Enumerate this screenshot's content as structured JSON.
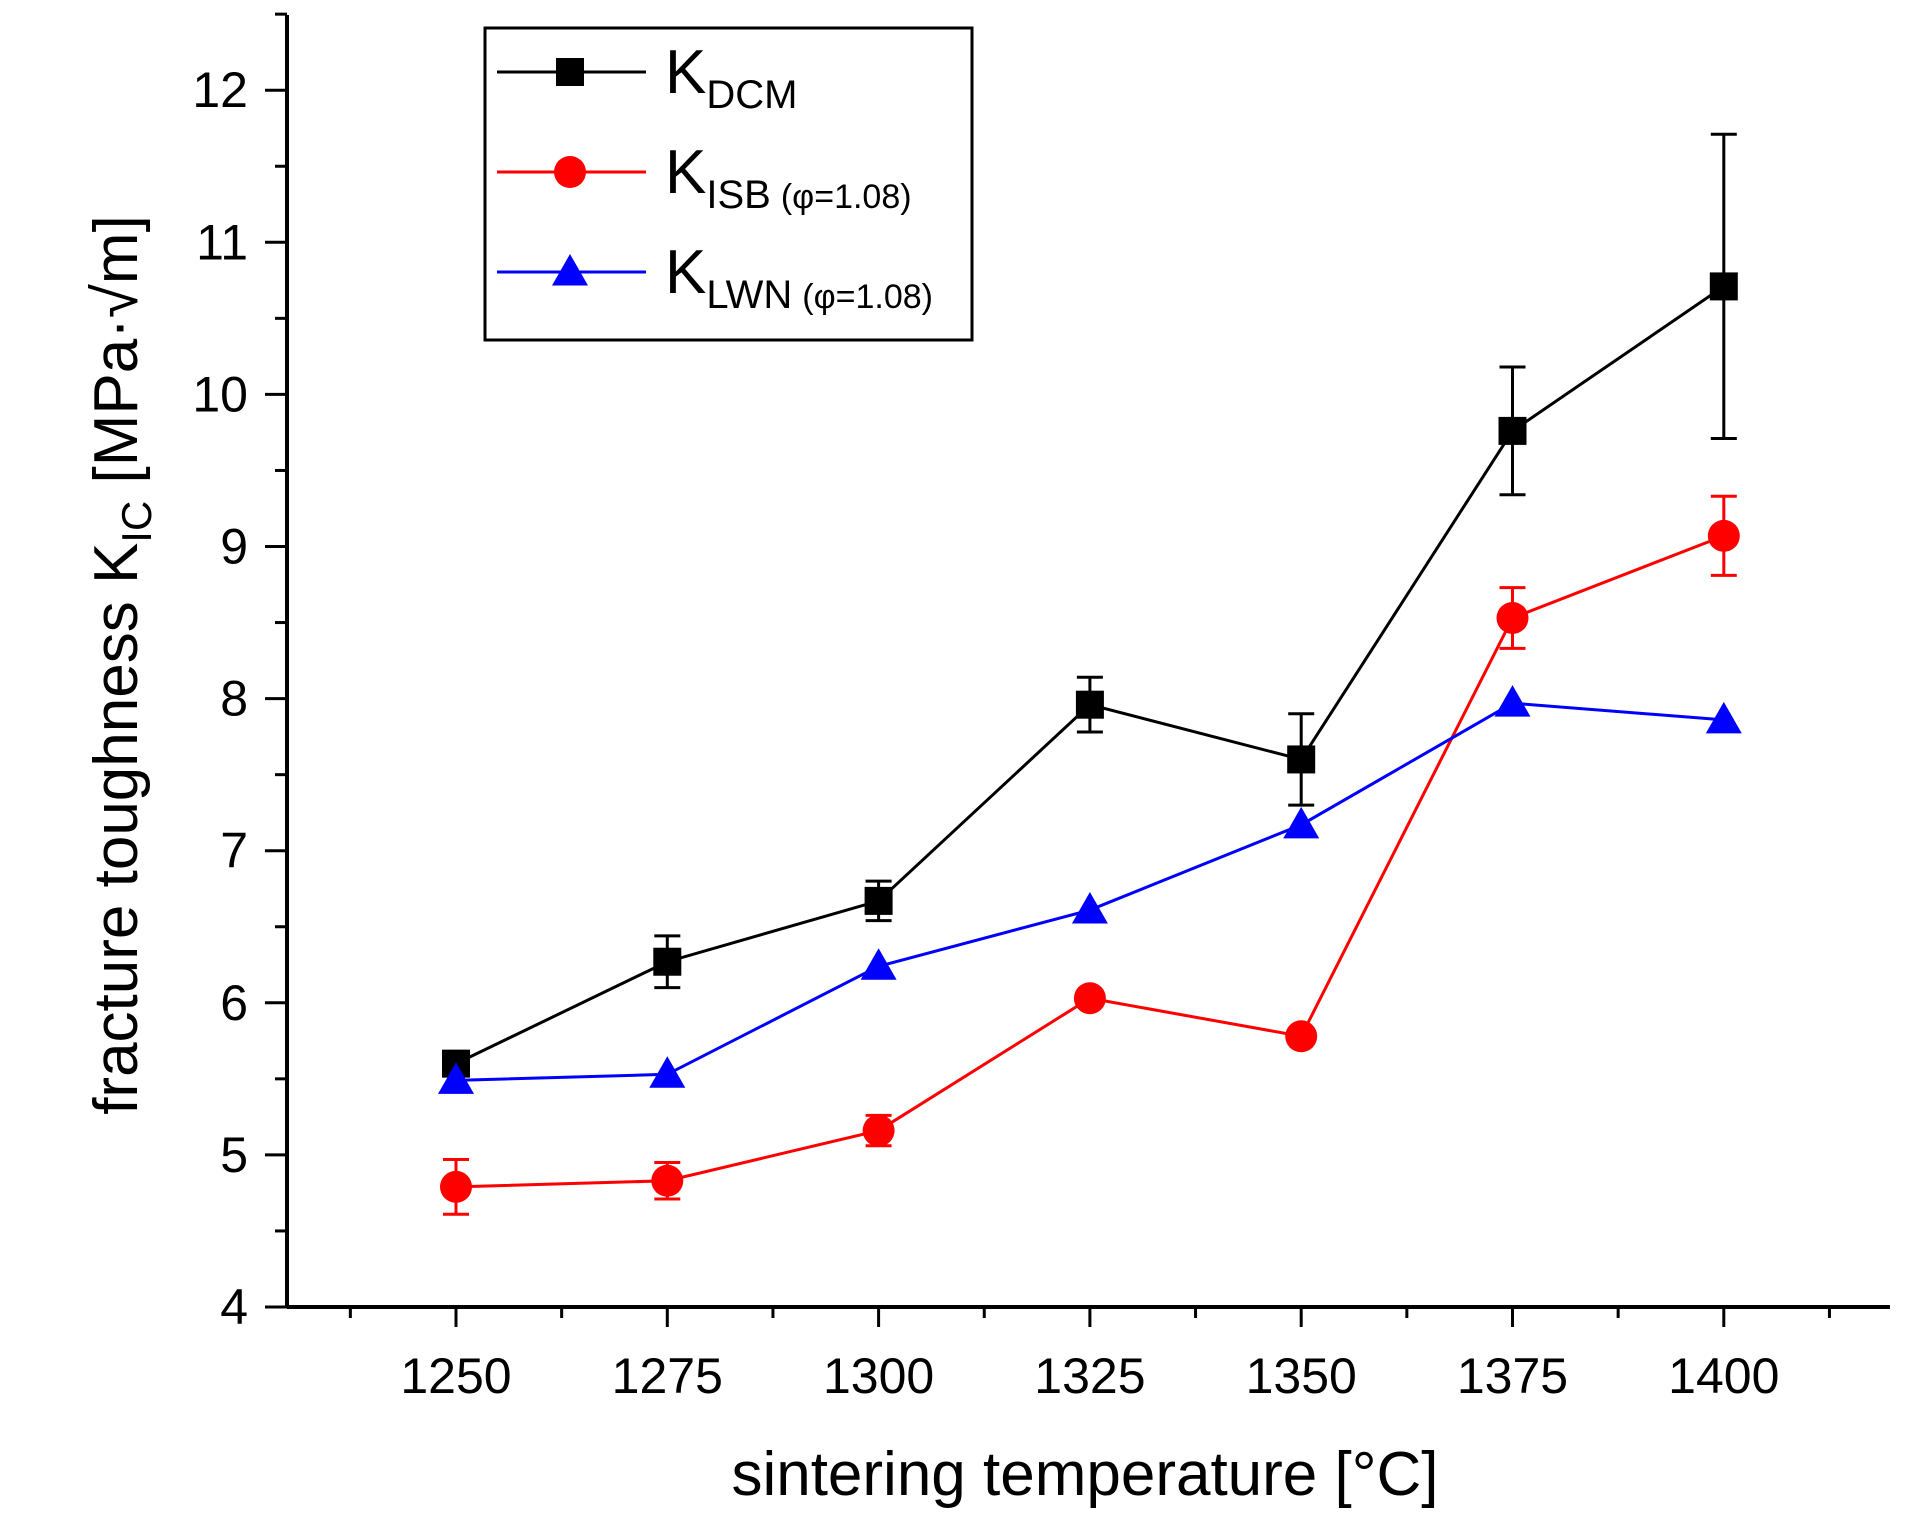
{
  "chart_data": {
    "type": "line",
    "x": [
      1250,
      1275,
      1300,
      1325,
      1350,
      1375,
      1400
    ],
    "xlabel": "sintering temperature [°C]",
    "ylabel": {
      "prefix": "fracture toughness K",
      "sub": "IC",
      "suffix": " [MPa·√m]"
    },
    "xlim": [
      1230,
      1420
    ],
    "ylim": [
      4,
      12.5
    ],
    "xticks": [
      1250,
      1275,
      1300,
      1325,
      1350,
      1375,
      1400
    ],
    "yticks": [
      4,
      5,
      6,
      7,
      8,
      9,
      10,
      11,
      12
    ],
    "grid": false,
    "legend_position": "top-left",
    "series": [
      {
        "name": "K_DCM",
        "label_main": "K",
        "label_sub": "DCM",
        "label_paren": "",
        "color": "#000000",
        "marker": "square",
        "values": [
          5.6,
          6.27,
          6.67,
          7.96,
          7.6,
          9.76,
          10.71
        ],
        "errors": [
          0.0,
          0.17,
          0.13,
          0.18,
          0.3,
          0.42,
          1.0
        ]
      },
      {
        "name": "K_ISB (φ=1.08)",
        "label_main": "K",
        "label_sub": "ISB",
        "label_paren": "(φ=1.08)",
        "color": "#ff0000",
        "marker": "circle",
        "values": [
          4.79,
          4.83,
          5.16,
          6.03,
          5.78,
          8.53,
          9.07
        ],
        "errors": [
          0.18,
          0.12,
          0.1,
          0.0,
          0.0,
          0.2,
          0.26
        ]
      },
      {
        "name": "K_LWN (φ=1.08)",
        "label_main": "K",
        "label_sub": "LWN",
        "label_paren": "(φ=1.08)",
        "color": "#0000ff",
        "marker": "triangle",
        "values": [
          5.49,
          5.53,
          6.24,
          6.61,
          7.17,
          7.97,
          7.86
        ],
        "errors": [
          0,
          0,
          0,
          0,
          0,
          0,
          0
        ]
      }
    ]
  }
}
